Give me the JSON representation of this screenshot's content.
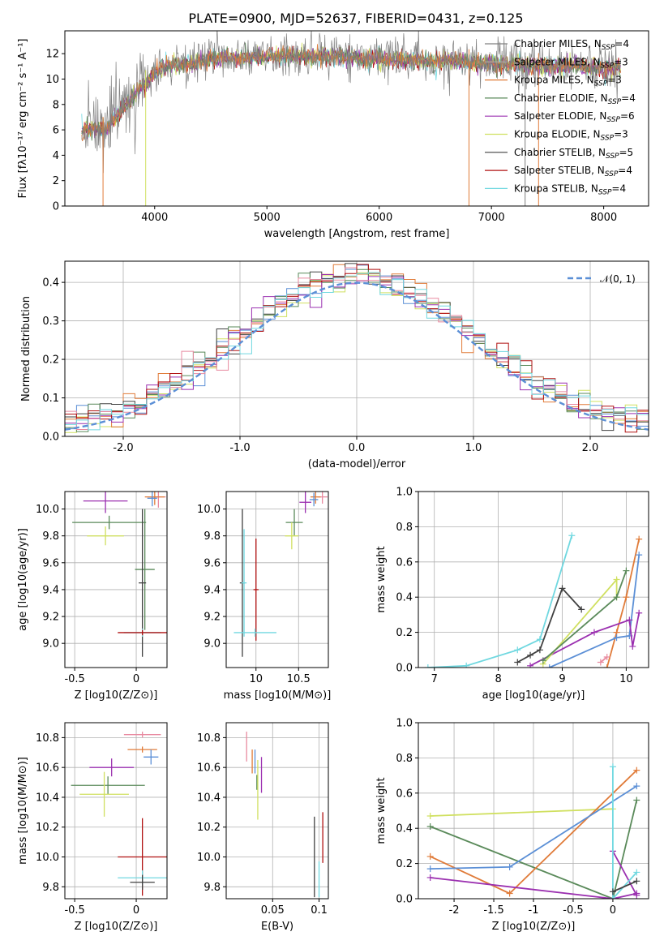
{
  "title": "PLATE=0900, MJD=52637, FIBERID=0431, z=0.125",
  "colors": {
    "chabrier_miles": "#808080",
    "salpeter_miles": "#aaaaaa",
    "kroupa_miles": "#e07b39",
    "chabrier_elodie": "#5a8a5a",
    "salpeter_elodie": "#9b30b0",
    "kroupa_elodie": "#d0e060",
    "chabrier_stelib": "#404040",
    "salpeter_stelib": "#b01010",
    "kroupa_stelib": "#70d8e0",
    "normal_curve": "#5b8fd6",
    "extra_pink": "#e88aa0",
    "extra_blue": "#5b8fd6"
  },
  "chart_data": [
    {
      "id": "spectrum",
      "type": "line",
      "xlabel": "wavelength [Angstrom, rest frame]",
      "ylabel": "Flux [fλ10⁻¹⁷ erg cm⁻² s⁻¹ A⁻¹]",
      "xlim": [
        3200,
        8400
      ],
      "ylim": [
        0,
        13.8
      ],
      "xticks": [
        4000,
        5000,
        6000,
        7000,
        8000
      ],
      "yticks": [
        0,
        2,
        4,
        6,
        8,
        10,
        12
      ],
      "grid": false,
      "legend_position": "right",
      "legend": [
        {
          "label": "Chabrier MILES, N_SSP=4",
          "text": "Chabrier MILES, N",
          "sub": "SSP",
          "tail": "=4",
          "color_key": "chabrier_miles"
        },
        {
          "label": "Salpeter MILES, N_SSP=3",
          "text": "Salpeter MILES, N",
          "sub": "SSP",
          "tail": "=3",
          "color_key": "salpeter_miles"
        },
        {
          "label": "Kroupa MILES, N_SSP=3",
          "text": "Kroupa MILES, N",
          "sub": "SSP",
          "tail": "=3",
          "color_key": "kroupa_miles"
        },
        {
          "label": "Chabrier ELODIE, N_SSP=4",
          "text": "Chabrier ELODIE, N",
          "sub": "SSP",
          "tail": "=4",
          "color_key": "chabrier_elodie"
        },
        {
          "label": "Salpeter ELODIE, N_SSP=6",
          "text": "Salpeter ELODIE, N",
          "sub": "SSP",
          "tail": "=6",
          "color_key": "salpeter_elodie"
        },
        {
          "label": "Kroupa ELODIE, N_SSP=3",
          "text": "Kroupa ELODIE, N",
          "sub": "SSP",
          "tail": "=3",
          "color_key": "kroupa_elodie"
        },
        {
          "label": "Chabrier STELIB, N_SSP=5",
          "text": "Chabrier STELIB, N",
          "sub": "SSP",
          "tail": "=5",
          "color_key": "chabrier_stelib"
        },
        {
          "label": "Salpeter STELIB, N_SSP=4",
          "text": "Salpeter STELIB, N",
          "sub": "SSP",
          "tail": "=4",
          "color_key": "salpeter_stelib"
        },
        {
          "label": "Kroupa STELIB, N_SSP=4",
          "text": "Kroupa STELIB, N",
          "sub": "SSP",
          "tail": "=4",
          "color_key": "kroupa_stelib"
        }
      ],
      "series_envelope": {
        "x": [
          3350,
          3450,
          3550,
          3650,
          3750,
          3850,
          3950,
          4050,
          4150,
          4300,
          4500,
          4700,
          4900,
          5100,
          5300,
          5500,
          5700,
          5900,
          6100,
          6300,
          6500,
          6700,
          6900,
          7100,
          7300,
          7500,
          7700,
          7900,
          8100
        ],
        "y": [
          5.9,
          6.2,
          6.0,
          7.0,
          8.0,
          9.0,
          10.0,
          10.9,
          11.1,
          11.1,
          11.6,
          11.7,
          11.7,
          11.8,
          11.8,
          11.8,
          11.7,
          11.6,
          11.5,
          11.5,
          11.4,
          11.4,
          11.3,
          11.2,
          11.1,
          11.0,
          11.1,
          10.9,
          10.9
        ]
      }
    },
    {
      "id": "residuals",
      "type": "line",
      "xlabel": "(data-model)/error",
      "ylabel": "Normed distribution",
      "xlim": [
        -2.5,
        2.5
      ],
      "ylim": [
        0,
        0.455
      ],
      "xticks": [
        -2,
        -1,
        0,
        1,
        2
      ],
      "yticks": [
        0.0,
        0.1,
        0.2,
        0.3,
        0.4
      ],
      "grid": true,
      "legend_position": "top-right",
      "legend": [
        {
          "label": "𝒩(0, 1)",
          "color_key": "normal_curve",
          "dashed": true
        }
      ],
      "histogram_bins": 50,
      "normal": {
        "mean": 0,
        "sigma": 1
      }
    },
    {
      "id": "age_vs_Z",
      "type": "scatter",
      "xlabel": "Z [log10(Z/Z⊙)]",
      "ylabel": "age [log10(age/yr)]",
      "xlim": [
        -0.58,
        0.25
      ],
      "ylim": [
        8.82,
        10.13
      ],
      "xticks": [
        -0.5,
        0.0
      ],
      "yticks": [
        9.0,
        9.2,
        9.4,
        9.6,
        9.8,
        10.0
      ],
      "grid": true,
      "points": [
        {
          "x": 0.18,
          "y": 10.09,
          "xerr": 0.06,
          "yerr": 0.08,
          "c": "extra_pink"
        },
        {
          "x": 0.15,
          "y": 10.09,
          "xerr": 0.08,
          "yerr": 0.06,
          "c": "kroupa_miles"
        },
        {
          "x": 0.13,
          "y": 10.08,
          "xerr": 0.04,
          "yerr": 0.06,
          "c": "extra_blue"
        },
        {
          "x": -0.25,
          "y": 10.06,
          "xerr": 0.18,
          "yerr": 0.09,
          "c": "salpeter_elodie"
        },
        {
          "x": 0.07,
          "y": 9.55,
          "xerr": 0.08,
          "yerr": 0.45,
          "c": "chabrier_elodie"
        },
        {
          "x": -0.22,
          "y": 9.9,
          "xerr": 0.3,
          "yerr": 0.05,
          "c": "chabrier_elodie"
        },
        {
          "x": -0.25,
          "y": 9.8,
          "xerr": 0.15,
          "yerr": 0.07,
          "c": "kroupa_elodie"
        },
        {
          "x": 0.05,
          "y": 9.45,
          "xerr": 0.03,
          "yerr": 0.55,
          "c": "chabrier_stelib"
        },
        {
          "x": 0.05,
          "y": 9.08,
          "xerr": 0.15,
          "yerr": 0.03,
          "c": "kroupa_stelib"
        },
        {
          "x": 0.05,
          "y": 9.08,
          "xerr": 0.2,
          "yerr": 0.02,
          "c": "salpeter_stelib"
        }
      ]
    },
    {
      "id": "age_vs_mass",
      "type": "scatter",
      "xlabel": "mass [log10(M/M⊙)]",
      "ylabel": "",
      "xlim": [
        9.65,
        10.85
      ],
      "ylim": [
        8.82,
        10.13
      ],
      "xticks": [
        10.0,
        10.5
      ],
      "yticks": [
        9.0,
        9.2,
        9.4,
        9.6,
        9.8,
        10.0
      ],
      "grid": true,
      "points": [
        {
          "x": 10.78,
          "y": 10.09,
          "xerr": 0.06,
          "yerr": 0.05,
          "c": "extra_pink"
        },
        {
          "x": 10.7,
          "y": 10.09,
          "xerr": 0.06,
          "yerr": 0.05,
          "c": "kroupa_miles"
        },
        {
          "x": 10.68,
          "y": 10.07,
          "xerr": 0.05,
          "yerr": 0.05,
          "c": "extra_blue"
        },
        {
          "x": 10.58,
          "y": 10.05,
          "xerr": 0.07,
          "yerr": 0.08,
          "c": "salpeter_elodie"
        },
        {
          "x": 10.45,
          "y": 9.9,
          "xerr": 0.1,
          "yerr": 0.1,
          "c": "chabrier_elodie"
        },
        {
          "x": 10.42,
          "y": 9.8,
          "xerr": 0.08,
          "yerr": 0.1,
          "c": "kroupa_elodie"
        },
        {
          "x": 9.84,
          "y": 9.45,
          "xerr": 0.03,
          "yerr": 0.55,
          "c": "chabrier_stelib"
        },
        {
          "x": 9.86,
          "y": 9.45,
          "xerr": 0.03,
          "yerr": 0.4,
          "c": "kroupa_stelib"
        },
        {
          "x": 10.0,
          "y": 9.4,
          "xerr": 0.03,
          "yerr": 0.38,
          "c": "salpeter_stelib"
        },
        {
          "x": 9.99,
          "y": 9.08,
          "xerr": 0.25,
          "yerr": 0.03,
          "c": "kroupa_stelib"
        }
      ]
    },
    {
      "id": "weight_vs_age",
      "type": "line",
      "xlabel": "age [log10(age/yr)]",
      "ylabel": "mass weight",
      "xlim": [
        6.75,
        10.35
      ],
      "ylim": [
        0,
        1.0
      ],
      "xticks": [
        7,
        8,
        9,
        10
      ],
      "yticks": [
        0.0,
        0.2,
        0.4,
        0.6,
        0.8,
        1.0
      ],
      "grid": true,
      "series": [
        {
          "c": "kroupa_stelib",
          "x": [
            6.9,
            7.5,
            8.3,
            8.65,
            9.15
          ],
          "y": [
            0.0,
            0.01,
            0.1,
            0.16,
            0.75
          ]
        },
        {
          "c": "chabrier_stelib",
          "x": [
            8.3,
            8.5,
            8.65,
            9.0,
            9.3
          ],
          "y": [
            0.03,
            0.07,
            0.1,
            0.45,
            0.33
          ]
        },
        {
          "c": "kroupa_miles",
          "x": [
            9.7,
            9.85,
            10.0,
            10.2
          ],
          "y": [
            0.0,
            0.2,
            0.4,
            0.73
          ]
        },
        {
          "c": "extra_blue",
          "x": [
            8.8,
            9.85,
            10.05,
            10.2
          ],
          "y": [
            0.0,
            0.17,
            0.18,
            0.64
          ]
        },
        {
          "c": "salpeter_elodie",
          "x": [
            8.5,
            9.5,
            10.05,
            10.1,
            10.2
          ],
          "y": [
            0.01,
            0.2,
            0.27,
            0.12,
            0.31
          ]
        },
        {
          "c": "kroupa_elodie",
          "x": [
            8.7,
            9.85,
            9.85
          ],
          "y": [
            0.02,
            0.5,
            0.4
          ]
        },
        {
          "c": "chabrier_elodie",
          "x": [
            8.7,
            9.85,
            10.0
          ],
          "y": [
            0.04,
            0.4,
            0.55
          ]
        },
        {
          "c": "extra_pink",
          "x": [
            9.6,
            9.7
          ],
          "y": [
            0.03,
            0.06
          ]
        }
      ]
    },
    {
      "id": "mass_vs_Z",
      "type": "scatter",
      "xlabel": "Z [log10(Z/Z⊙)]",
      "ylabel": "mass [log10(M/M⊙)]",
      "xlim": [
        -0.58,
        0.25
      ],
      "ylim": [
        9.72,
        10.9
      ],
      "xticks": [
        -0.5,
        0.0
      ],
      "yticks": [
        9.8,
        10.0,
        10.2,
        10.4,
        10.6,
        10.8
      ],
      "grid": true,
      "points": [
        {
          "x": 0.05,
          "y": 10.82,
          "xerr": 0.15,
          "yerr": 0.02,
          "c": "extra_pink"
        },
        {
          "x": 0.05,
          "y": 10.72,
          "xerr": 0.12,
          "yerr": 0.02,
          "c": "kroupa_miles"
        },
        {
          "x": 0.12,
          "y": 10.67,
          "xerr": 0.06,
          "yerr": 0.05,
          "c": "extra_blue"
        },
        {
          "x": -0.2,
          "y": 10.6,
          "xerr": 0.18,
          "yerr": 0.06,
          "c": "salpeter_elodie"
        },
        {
          "x": -0.23,
          "y": 10.48,
          "xerr": 0.3,
          "yerr": 0.06,
          "c": "chabrier_elodie"
        },
        {
          "x": -0.26,
          "y": 10.42,
          "xerr": 0.2,
          "yerr": 0.15,
          "c": "kroupa_elodie"
        },
        {
          "x": 0.05,
          "y": 10.0,
          "xerr": 0.2,
          "yerr": 0.26,
          "c": "salpeter_stelib"
        },
        {
          "x": 0.05,
          "y": 9.86,
          "xerr": 0.2,
          "yerr": 0.05,
          "c": "kroupa_stelib"
        },
        {
          "x": 0.05,
          "y": 9.83,
          "xerr": 0.1,
          "yerr": 0.05,
          "c": "chabrier_stelib"
        }
      ]
    },
    {
      "id": "mass_vs_ebv",
      "type": "scatter",
      "xlabel": "E(B-V)",
      "ylabel": "",
      "xlim": [
        0.0,
        0.11
      ],
      "ylim": [
        9.72,
        10.9
      ],
      "xticks": [
        0.05,
        0.1
      ],
      "yticks": [
        9.8,
        10.0,
        10.2,
        10.4,
        10.6,
        10.8
      ],
      "grid": true,
      "points": [
        {
          "x": 0.022,
          "y": 10.74,
          "xerr": 0,
          "yerr": 0.1,
          "c": "extra_pink"
        },
        {
          "x": 0.028,
          "y": 10.64,
          "xerr": 0,
          "yerr": 0.08,
          "c": "kroupa_miles"
        },
        {
          "x": 0.031,
          "y": 10.64,
          "xerr": 0,
          "yerr": 0.08,
          "c": "extra_blue"
        },
        {
          "x": 0.038,
          "y": 10.55,
          "xerr": 0,
          "yerr": 0.12,
          "c": "salpeter_elodie"
        },
        {
          "x": 0.033,
          "y": 10.5,
          "xerr": 0,
          "yerr": 0.05,
          "c": "chabrier_elodie"
        },
        {
          "x": 0.034,
          "y": 10.45,
          "xerr": 0,
          "yerr": 0.2,
          "c": "kroupa_elodie"
        },
        {
          "x": 0.095,
          "y": 10.0,
          "xerr": 0,
          "yerr": 0.27,
          "c": "chabrier_stelib"
        },
        {
          "x": 0.1,
          "y": 9.85,
          "xerr": 0,
          "yerr": 0.12,
          "c": "kroupa_stelib"
        },
        {
          "x": 0.104,
          "y": 10.13,
          "xerr": 0,
          "yerr": 0.17,
          "c": "salpeter_stelib"
        }
      ]
    },
    {
      "id": "weight_vs_Z",
      "type": "line",
      "xlabel": "Z [log10(Z/Z⊙)]",
      "ylabel": "mass weight",
      "xlim": [
        -2.45,
        0.45
      ],
      "ylim": [
        0,
        1.0
      ],
      "xticks": [
        -2.0,
        -1.5,
        -1.0,
        -0.5,
        0.0
      ],
      "yticks": [
        0.0,
        0.2,
        0.4,
        0.6,
        0.8,
        1.0
      ],
      "grid": true,
      "series": [
        {
          "c": "kroupa_elodie",
          "x": [
            -2.3,
            0.0
          ],
          "y": [
            0.47,
            0.51
          ]
        },
        {
          "c": "chabrier_elodie",
          "x": [
            -2.3,
            0.0,
            0.3
          ],
          "y": [
            0.41,
            0.0,
            0.56
          ]
        },
        {
          "c": "kroupa_miles",
          "x": [
            -2.3,
            -1.3,
            0.3
          ],
          "y": [
            0.24,
            0.03,
            0.73
          ]
        },
        {
          "c": "extra_blue",
          "x": [
            -2.3,
            -1.3,
            0.3
          ],
          "y": [
            0.17,
            0.18,
            0.64
          ]
        },
        {
          "c": "salpeter_elodie",
          "x": [
            -2.3,
            0.0,
            0.3
          ],
          "y": [
            0.12,
            0.0,
            0.03
          ]
        },
        {
          "c": "salpeter_elodie",
          "x": [
            0.0,
            0.3
          ],
          "y": [
            0.27,
            0.02
          ]
        },
        {
          "c": "kroupa_stelib",
          "x": [
            0.0,
            0.0,
            0.3
          ],
          "y": [
            0.75,
            0.0,
            0.15
          ]
        },
        {
          "c": "chabrier_stelib",
          "x": [
            0.0,
            0.3
          ],
          "y": [
            0.04,
            0.1
          ]
        }
      ]
    }
  ]
}
